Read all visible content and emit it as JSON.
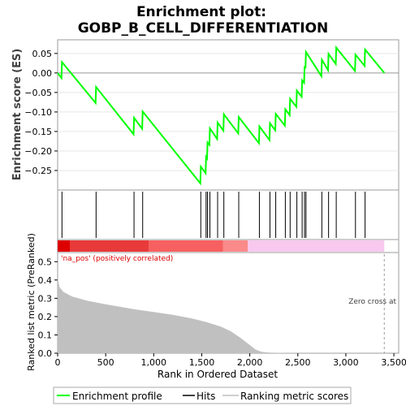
{
  "chart_data": {
    "type": "line",
    "title": "Enrichment plot:",
    "subtitle": "GOBP_B_CELL_DIFFERENTIATION",
    "es_panel": {
      "ylabel": "Enrichment score (ES)",
      "ylim": [
        -0.3,
        0.085
      ],
      "yticks": [
        0.05,
        0.0,
        -0.05,
        -0.1,
        -0.15,
        -0.2,
        -0.25
      ],
      "ytick_labels": [
        "0.05",
        "0.00",
        "−0.05",
        "−0.10",
        "−0.15",
        "−0.20",
        "−0.25"
      ],
      "line_color": "#00ff00"
    },
    "hits_positions": [
      45,
      400,
      795,
      885,
      1490,
      1545,
      1560,
      1585,
      1665,
      1730,
      1885,
      2100,
      2210,
      2270,
      2370,
      2420,
      2490,
      2545,
      2570,
      2585,
      2750,
      2820,
      2900,
      3100,
      3200
    ],
    "es_path": [
      [
        0,
        0.0
      ],
      [
        40,
        -0.013
      ],
      [
        45,
        0.028
      ],
      [
        395,
        -0.077
      ],
      [
        400,
        -0.036
      ],
      [
        790,
        -0.157
      ],
      [
        795,
        -0.115
      ],
      [
        880,
        -0.143
      ],
      [
        885,
        -0.099
      ],
      [
        1485,
        -0.283
      ],
      [
        1490,
        -0.24
      ],
      [
        1540,
        -0.257
      ],
      [
        1545,
        -0.215
      ],
      [
        1555,
        -0.219
      ],
      [
        1560,
        -0.178
      ],
      [
        1580,
        -0.184
      ],
      [
        1585,
        -0.142
      ],
      [
        1660,
        -0.169
      ],
      [
        1665,
        -0.127
      ],
      [
        1725,
        -0.148
      ],
      [
        1730,
        -0.106
      ],
      [
        1880,
        -0.155
      ],
      [
        1885,
        -0.113
      ],
      [
        2095,
        -0.18
      ],
      [
        2100,
        -0.137
      ],
      [
        2205,
        -0.172
      ],
      [
        2210,
        -0.129
      ],
      [
        2265,
        -0.147
      ],
      [
        2270,
        -0.105
      ],
      [
        2365,
        -0.135
      ],
      [
        2370,
        -0.093
      ],
      [
        2415,
        -0.108
      ],
      [
        2420,
        -0.066
      ],
      [
        2485,
        -0.087
      ],
      [
        2490,
        -0.045
      ],
      [
        2540,
        -0.061
      ],
      [
        2545,
        -0.019
      ],
      [
        2565,
        -0.025
      ],
      [
        2570,
        0.017
      ],
      [
        2580,
        0.012
      ],
      [
        2585,
        0.054
      ],
      [
        2745,
        -0.008
      ],
      [
        2750,
        0.034
      ],
      [
        2815,
        0.007
      ],
      [
        2820,
        0.049
      ],
      [
        2895,
        0.023
      ],
      [
        2900,
        0.065
      ],
      [
        3095,
        0.005
      ],
      [
        3100,
        0.047
      ],
      [
        3195,
        0.018
      ],
      [
        3200,
        0.06
      ],
      [
        3400,
        0.0
      ]
    ],
    "rank_panel": {
      "ylabel": "Ranked list metric (PreRanked)",
      "xlabel": "Rank in Ordered Dataset",
      "xlim": [
        0,
        3550
      ],
      "ylim": [
        0,
        0.55
      ],
      "xticks": [
        0,
        500,
        1000,
        1500,
        2000,
        2500,
        3000,
        3500
      ],
      "xtick_labels": [
        "0",
        "500",
        "1,000",
        "1,500",
        "2,000",
        "2,500",
        "3,000",
        "3,500"
      ],
      "yticks": [
        0.0,
        0.1,
        0.2,
        0.3,
        0.4,
        0.5
      ],
      "ytick_labels": [
        "0.0",
        "0.1",
        "0.2",
        "0.3",
        "0.4",
        "0.5"
      ],
      "metric_curve": [
        [
          0,
          0.41
        ],
        [
          20,
          0.36
        ],
        [
          60,
          0.335
        ],
        [
          150,
          0.31
        ],
        [
          300,
          0.288
        ],
        [
          500,
          0.267
        ],
        [
          800,
          0.24
        ],
        [
          1000,
          0.225
        ],
        [
          1200,
          0.21
        ],
        [
          1400,
          0.19
        ],
        [
          1550,
          0.17
        ],
        [
          1700,
          0.145
        ],
        [
          1800,
          0.12
        ],
        [
          1900,
          0.085
        ],
        [
          2000,
          0.045
        ],
        [
          2060,
          0.02
        ],
        [
          2120,
          0.008
        ],
        [
          2200,
          0.003
        ],
        [
          2400,
          0.001
        ],
        [
          3400,
          0.0
        ]
      ],
      "fill_color": "#c0c0c0",
      "positive_label": "'na_pos' (positively correlated)",
      "zero_cross_label": "Zero cross at",
      "zero_cross_rank": 3400
    },
    "heat_bar": {
      "segments": [
        {
          "from": 0,
          "to": 130,
          "color": "#dd0000"
        },
        {
          "from": 130,
          "to": 950,
          "color": "#e83a3a"
        },
        {
          "from": 950,
          "to": 1720,
          "color": "#f76060"
        },
        {
          "from": 1720,
          "to": 1980,
          "color": "#fb8a8a"
        },
        {
          "from": 1980,
          "to": 3400,
          "color": "#f8c8ef"
        }
      ]
    },
    "legend": {
      "placement": "bottom",
      "items": [
        {
          "label": "Enrichment profile",
          "color": "#00ff00"
        },
        {
          "label": "Hits",
          "color": "#000000"
        },
        {
          "label": "Ranking metric scores",
          "color": "#c0c0c0"
        }
      ]
    }
  }
}
